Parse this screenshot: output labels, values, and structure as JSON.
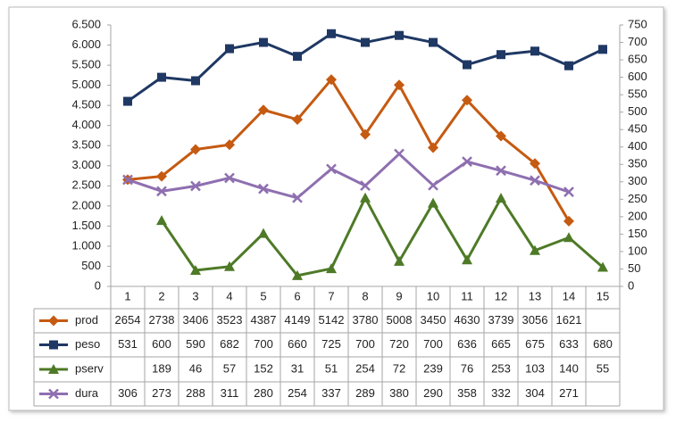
{
  "chart_data": {
    "type": "line",
    "categories": [
      "1",
      "2",
      "3",
      "4",
      "5",
      "6",
      "7",
      "8",
      "9",
      "10",
      "11",
      "12",
      "13",
      "14",
      "15"
    ],
    "series": [
      {
        "name": "prod",
        "color": "#c55a11",
        "marker": "diamond",
        "axis": "y",
        "values": [
          2654,
          2738,
          3406,
          3523,
          4387,
          4149,
          5142,
          3780,
          5008,
          3450,
          4630,
          3739,
          3056,
          1621,
          null
        ]
      },
      {
        "name": "peso",
        "color": "#1f3864",
        "marker": "square",
        "axis": "y2",
        "values": [
          531,
          600,
          590,
          682,
          700,
          660,
          725,
          700,
          720,
          700,
          636,
          665,
          675,
          633,
          680
        ]
      },
      {
        "name": "pserv",
        "color": "#4e7a27",
        "marker": "triangle",
        "axis": "y2",
        "values": [
          null,
          189,
          46,
          57,
          152,
          31,
          51,
          254,
          72,
          239,
          76,
          253,
          103,
          140,
          55
        ]
      },
      {
        "name": "dura",
        "color": "#8e6fb0",
        "marker": "x",
        "axis": "y2",
        "values": [
          306,
          273,
          288,
          311,
          280,
          254,
          337,
          289,
          380,
          290,
          358,
          332,
          304,
          271,
          null
        ]
      }
    ],
    "ylim": [
      0,
      6500
    ],
    "yticks": [
      0,
      500,
      {
        "value": 1000,
        "label": "1.000"
      },
      {
        "value": 1500,
        "label": "1.500"
      },
      {
        "value": 2000,
        "label": "2.000"
      },
      {
        "value": 2500,
        "label": "2.500"
      },
      {
        "value": 3000,
        "label": "3.000"
      },
      {
        "value": 3500,
        "label": "3.500"
      },
      {
        "value": 4000,
        "label": "4.000"
      },
      {
        "value": 4500,
        "label": "4.500"
      },
      {
        "value": 5000,
        "label": "5.000"
      },
      {
        "value": 5500,
        "label": "5.500"
      },
      {
        "value": 6000,
        "label": "6.000"
      },
      {
        "value": 6500,
        "label": "6.500"
      }
    ],
    "y2lim": [
      0,
      750
    ],
    "y2ticks": [
      0,
      50,
      100,
      150,
      200,
      250,
      300,
      350,
      400,
      450,
      500,
      550,
      600,
      650,
      700,
      750
    ],
    "grid": false
  }
}
